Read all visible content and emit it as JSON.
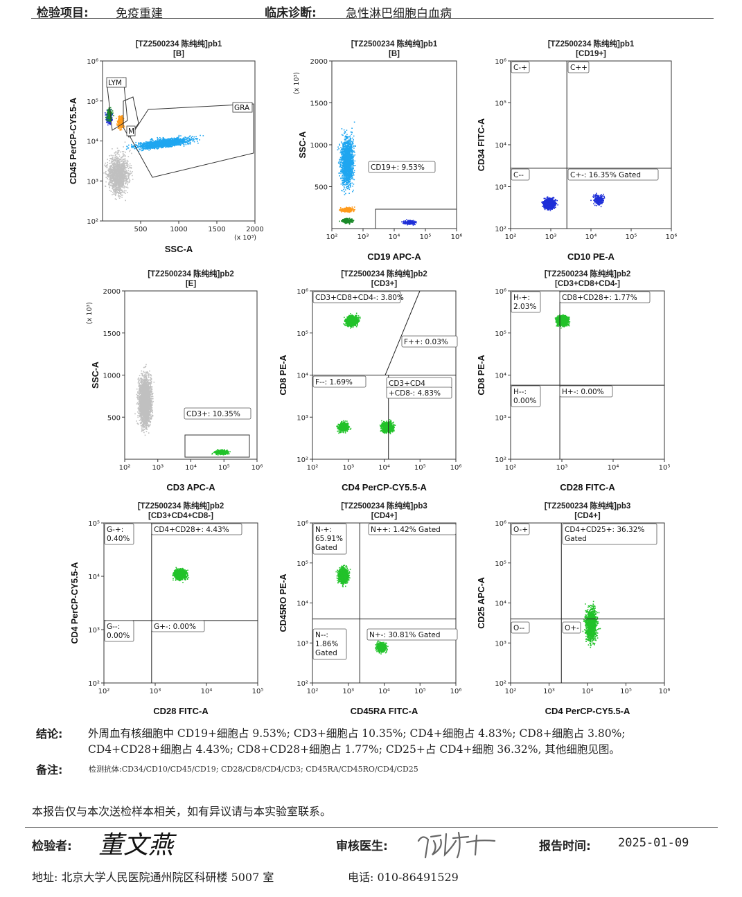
{
  "header": {
    "item_label": "检验项目:",
    "item_value": "免疫重建",
    "diag_label": "临床诊断:",
    "diag_value": "急性淋巴细胞白血病"
  },
  "chart_data": [
    {
      "type": "scatter",
      "title": "[TZ2500234 陈纯纯]pb1",
      "subtitle": "[B]",
      "xlabel": "SSC-A",
      "ylabel": "CD45 PerCP-CY5.5-A",
      "xscale": "linear",
      "yscale": "log",
      "xlim": [
        0,
        2000
      ],
      "ylim": [
        100,
        1000000
      ],
      "xticks": [
        "500",
        "1000",
        "1500",
        "2000"
      ],
      "yticks": [
        "10²",
        "10³",
        "10⁴",
        "10⁵",
        "10⁶"
      ],
      "xunit": "(x 10³)",
      "gates": [
        "LYM",
        "M",
        "GRA"
      ],
      "populations": [
        {
          "color": "#c0c0c0",
          "x_center": 200,
          "y_center": 1500,
          "count": 1400
        },
        {
          "color": "#1fa6f0",
          "x_center": 800,
          "y_center": 9000,
          "count": 1600
        },
        {
          "color": "#ff9a1a",
          "x_center": 230,
          "y_center": 30000,
          "count": 260
        },
        {
          "color": "#1e2fd8",
          "x_center": 80,
          "y_center": 40000,
          "count": 260
        },
        {
          "color": "#1b8a2a",
          "x_center": 85,
          "y_center": 45000,
          "count": 120
        }
      ]
    },
    {
      "type": "scatter",
      "title": "[TZ2500234 陈纯纯]pb1",
      "subtitle": "[B]",
      "xlabel": "CD19 APC-A",
      "ylabel": "SSC-A",
      "xscale": "log",
      "yscale": "linear",
      "xlim": [
        100,
        1000000
      ],
      "ylim": [
        0,
        2000
      ],
      "xticks": [
        "10²",
        "10³",
        "10⁴",
        "10⁵",
        "10⁶"
      ],
      "yticks": [
        "500",
        "1000",
        "1500",
        "2000"
      ],
      "yunit": "(x 10³)",
      "annotations": [
        "CD19+: 9.53%"
      ],
      "populations": [
        {
          "color": "#1fa6f0",
          "x_center": 300,
          "y_center": 800,
          "count": 1600
        },
        {
          "color": "#ff9a1a",
          "x_center": 300,
          "y_center": 230,
          "count": 250
        },
        {
          "color": "#1b8a2a",
          "x_center": 300,
          "y_center": 100,
          "count": 250
        },
        {
          "color": "#1e2fd8",
          "x_center": 30000,
          "y_center": 80,
          "count": 220
        }
      ]
    },
    {
      "type": "scatter",
      "title": "[TZ2500234 陈纯纯]pb1",
      "subtitle": "[CD19+]",
      "xlabel": "CD10 PE-A",
      "ylabel": "CD34 FITC-A",
      "xscale": "log",
      "yscale": "log",
      "xlim": [
        100,
        1000000
      ],
      "ylim": [
        100,
        1000000
      ],
      "xticks": [
        "10²",
        "10³",
        "10⁴",
        "10⁵",
        "10⁶"
      ],
      "yticks": [
        "10²",
        "10³",
        "10⁴",
        "10⁵",
        "10⁶"
      ],
      "quadrants": [
        "C-+",
        "C++",
        "C--",
        "C+-: 16.35% Gated"
      ],
      "populations": [
        {
          "color": "#1e2fd8",
          "x_center": 900,
          "y_center": 400,
          "count": 1500
        },
        {
          "color": "#1e2fd8",
          "x_center": 15000,
          "y_center": 500,
          "count": 250
        }
      ]
    },
    {
      "type": "scatter",
      "title": "[TZ2500234 陈纯纯]pb2",
      "subtitle": "[E]",
      "xlabel": "CD3 APC-A",
      "ylabel": "SSC-A",
      "xscale": "log",
      "yscale": "linear",
      "xlim": [
        100,
        1000000
      ],
      "ylim": [
        0,
        2000
      ],
      "xticks": [
        "10²",
        "10³",
        "10⁴",
        "10⁵",
        "10⁶"
      ],
      "yticks": [
        "500",
        "1000",
        "1500",
        "2000"
      ],
      "yunit": "(x 10³)",
      "annotations": [
        "CD3+: 10.35%"
      ],
      "populations": [
        {
          "color": "#c0c0c0",
          "x_center": 400,
          "y_center": 700,
          "count": 2600
        },
        {
          "color": "#22c22a",
          "x_center": 80000,
          "y_center": 90,
          "count": 500
        }
      ]
    },
    {
      "type": "scatter",
      "title": "[TZ2500234 陈纯纯]pb2",
      "subtitle": "[CD3+]",
      "xlabel": "CD4 PerCP-CY5.5-A",
      "ylabel": "CD8 PE-A",
      "xscale": "log",
      "yscale": "log",
      "xlim": [
        100,
        1000000
      ],
      "ylim": [
        100,
        1000000
      ],
      "xticks": [
        "10²",
        "10³",
        "10⁴",
        "10⁵",
        "10⁶"
      ],
      "yticks": [
        "10²",
        "10³",
        "10⁴",
        "10⁵",
        "10⁶"
      ],
      "quadrants": [
        "CD3+CD8+CD4-: 3.80%",
        "F++: 0.03%",
        "F--: 1.69%",
        "CD3+CD4",
        "+CD8-: 4.83%"
      ],
      "populations": [
        {
          "color": "#22c22a",
          "x_center": 1200,
          "y_center": 200000,
          "count": 1200
        },
        {
          "color": "#22c22a",
          "x_center": 12000,
          "y_center": 600,
          "count": 1000
        },
        {
          "color": "#22c22a",
          "x_center": 700,
          "y_center": 600,
          "count": 350
        }
      ]
    },
    {
      "type": "scatter",
      "title": "[TZ2500234 陈纯纯]pb2",
      "subtitle": "[CD3+CD8+CD4-]",
      "xlabel": "CD28 FITC-A",
      "ylabel": "CD8 PE-A",
      "xscale": "log",
      "yscale": "log",
      "xlim": [
        100,
        100000
      ],
      "ylim": [
        100,
        1000000
      ],
      "xticks": [
        "10²",
        "10³",
        "10⁴",
        "10⁵"
      ],
      "yticks": [
        "10²",
        "10³",
        "10⁴",
        "10⁵",
        "10⁶"
      ],
      "quadrants": [
        "H-+:",
        "2.03%",
        "CD8+CD28+: 1.77%",
        "H--:",
        "0.00%",
        "H+-: 0.00%"
      ],
      "populations": [
        {
          "color": "#22c22a",
          "x_center": 1000,
          "y_center": 200000,
          "count": 1300
        }
      ]
    },
    {
      "type": "scatter",
      "title": "[TZ2500234 陈纯纯]pb2",
      "subtitle": "[CD3+CD4+CD8-]",
      "xlabel": "CD28 FITC-A",
      "ylabel": "CD4 PerCP-CY5.5-A",
      "xscale": "log",
      "yscale": "log",
      "xlim": [
        100,
        100000
      ],
      "ylim": [
        100,
        100000
      ],
      "xticks": [
        "10²",
        "10³",
        "10⁴",
        "10⁵"
      ],
      "yticks": [
        "10²",
        "10³",
        "10⁴",
        "10⁵"
      ],
      "quadrants": [
        "G-+:",
        "0.40%",
        "CD4+CD28+: 4.43%",
        "G--:",
        "0.00%",
        "G+-: 0.00%"
      ],
      "populations": [
        {
          "color": "#22c22a",
          "x_center": 3000,
          "y_center": 11000,
          "count": 1300
        }
      ]
    },
    {
      "type": "scatter",
      "title": "[TZ2500234 陈纯纯]pb3",
      "subtitle": "[CD4+]",
      "xlabel": "CD45RA FITC-A",
      "ylabel": "CD45RO PE-A",
      "xscale": "log",
      "yscale": "log",
      "xlim": [
        100,
        1000000
      ],
      "ylim": [
        100,
        1000000
      ],
      "xticks": [
        "10²",
        "10³",
        "10⁴",
        "10⁵",
        "10⁶"
      ],
      "yticks": [
        "10²",
        "10³",
        "10⁴",
        "10⁵",
        "10⁶"
      ],
      "quadrants": [
        "N-+:",
        "65.91%",
        "Gated",
        "N++: 1.42% Gated",
        "N--:",
        "1.86%",
        "Gated",
        "N+-: 30.81% Gated"
      ],
      "populations": [
        {
          "color": "#22c22a",
          "x_center": 700,
          "y_center": 50000,
          "count": 1100
        },
        {
          "color": "#22c22a",
          "x_center": 8000,
          "y_center": 800,
          "count": 600
        }
      ]
    },
    {
      "type": "scatter",
      "title": "[TZ2500234 陈纯纯]pb3",
      "subtitle": "[CD4+]",
      "xlabel": "CD4 PerCP-CY5.5-A",
      "ylabel": "CD25 APC-A",
      "xscale": "log",
      "yscale": "log",
      "xlim": [
        100,
        1000000
      ],
      "ylim": [
        100,
        1000000
      ],
      "xticks": [
        "10²",
        "10³",
        "10⁴",
        "10⁵",
        "10⁶"
      ],
      "yticks": [
        "10²",
        "10³",
        "10⁴",
        "10⁵",
        "10⁶"
      ],
      "quadrants": [
        "O-+",
        "CD4+CD25+: 36.32%",
        "Gated",
        "O--",
        "O+-"
      ],
      "populations": [
        {
          "color": "#22c22a",
          "x_center": 12000,
          "y_center": 3000,
          "count": 1400
        }
      ]
    }
  ],
  "conclusion": {
    "label": "结论:",
    "line1": "外周血有核细胞中 CD19+细胞占 9.53%; CD3+细胞占 10.35%; CD4+细胞占 4.83%; CD8+细胞占 3.80%;",
    "line2": "CD4+CD28+细胞占 4.43%; CD8+CD28+细胞占 1.77%; CD25+占 CD4+细胞 36.32%, 其他细胞见图。"
  },
  "note": {
    "label": "备注:",
    "text": "检测抗体:CD34/CD10/CD45/CD19;   CD28/CD8/CD4/CD3;   CD45RA/CD45RO/CD4/CD25"
  },
  "disclaimer": "本报告仅与本次送检样本相关，如有异议请与本实验室联系。",
  "footer": {
    "tester_label": "检验者:",
    "tester_signature": "董文燕",
    "reviewer_label": "审核医生:",
    "time_label": "报告时间:",
    "date": "2025-01-09",
    "address": "地址: 北京大学人民医院通州院区科研楼 5007 室",
    "phone": "电话: 010-86491529"
  }
}
